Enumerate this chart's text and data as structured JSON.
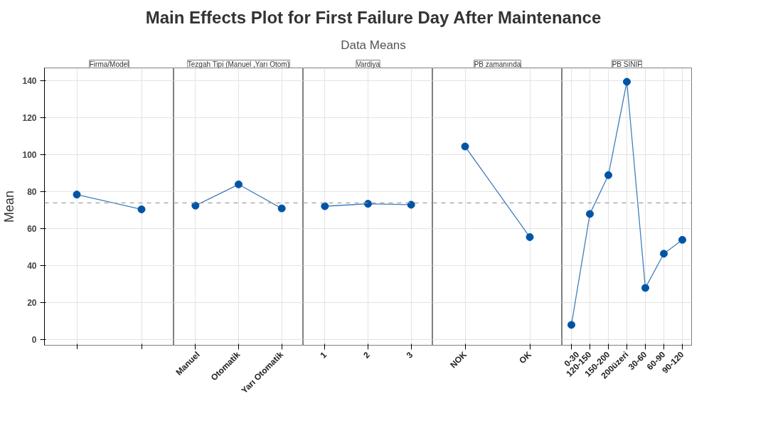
{
  "chart_data": [
    {
      "type": "other",
      "title": "Main Effects Plot for First Failure Day After Maintenance",
      "subtitle": "Data Means"
    },
    {
      "type": "line",
      "ylabel": "Mean",
      "annotations": [
        "Firma/Model"
      ],
      "categories": [
        null,
        null
      ],
      "series": [
        {
          "color": "#0054a6",
          "values": [
            78.5,
            70.5
          ]
        }
      ],
      "ylim": [
        -3,
        147
      ],
      "yticks": [
        0,
        20,
        40,
        60,
        80,
        100,
        120,
        140
      ],
      "ref_lines": [
        {
          "axis": "y",
          "value": 74,
          "color": "#a0a0a0",
          "line_style": "dashed"
        }
      ],
      "grid": true,
      "marker": "circle",
      "line_style": "solid",
      "tick_labels": "y"
    },
    {
      "type": "line",
      "annotations": [
        "Tezgah Tipi (Manuel ,Yarı Otom)"
      ],
      "categories": [
        "Manuel",
        "Otomatik",
        "Yarı Otomatik"
      ],
      "series": [
        {
          "color": "#0054a6",
          "values": [
            72.5,
            84,
            71
          ]
        }
      ],
      "ylim": [
        -3,
        147
      ],
      "yticks": [
        0,
        20,
        40,
        60,
        80,
        100,
        120,
        140
      ],
      "ref_lines": [
        {
          "axis": "y",
          "value": 74,
          "color": "#a0a0a0",
          "line_style": "dashed"
        }
      ],
      "grid": true,
      "marker": "circle",
      "line_style": "solid",
      "tick_labels": "x"
    },
    {
      "type": "line",
      "annotations": [
        "Vardiya"
      ],
      "categories": [
        "1",
        "2",
        "3"
      ],
      "series": [
        {
          "color": "#0054a6",
          "values": [
            72.2,
            73.5,
            73
          ]
        }
      ],
      "ylim": [
        -3,
        147
      ],
      "yticks": [
        0,
        20,
        40,
        60,
        80,
        100,
        120,
        140
      ],
      "ref_lines": [
        {
          "axis": "y",
          "value": 74,
          "color": "#a0a0a0",
          "line_style": "dashed"
        }
      ],
      "grid": true,
      "marker": "circle",
      "line_style": "solid",
      "tick_labels": "x"
    },
    {
      "type": "line",
      "annotations": [
        "PB zamanında"
      ],
      "categories": [
        "NOK",
        "OK"
      ],
      "series": [
        {
          "color": "#0054a6",
          "values": [
            104.5,
            55.5
          ]
        }
      ],
      "ylim": [
        -3,
        147
      ],
      "yticks": [
        0,
        20,
        40,
        60,
        80,
        100,
        120,
        140
      ],
      "ref_lines": [
        {
          "axis": "y",
          "value": 74,
          "color": "#a0a0a0",
          "line_style": "dashed"
        }
      ],
      "grid": true,
      "marker": "circle",
      "line_style": "solid",
      "tick_labels": "x"
    },
    {
      "type": "line",
      "annotations": [
        "PB SINIF"
      ],
      "categories": [
        "0-30",
        "120-150",
        "150-200",
        "200üzeri",
        "30-60",
        "60-90",
        "90-120"
      ],
      "series": [
        {
          "color": "#0054a6",
          "values": [
            8,
            68,
            89,
            139.5,
            28,
            46.5,
            54
          ]
        }
      ],
      "ylim": [
        -3,
        147
      ],
      "yticks": [
        0,
        20,
        40,
        60,
        80,
        100,
        120,
        140
      ],
      "ref_lines": [
        {
          "axis": "y",
          "value": 74,
          "color": "#a0a0a0",
          "line_style": "dashed"
        }
      ],
      "grid": true,
      "marker": "circle",
      "line_style": "solid",
      "tick_labels": "x"
    }
  ]
}
